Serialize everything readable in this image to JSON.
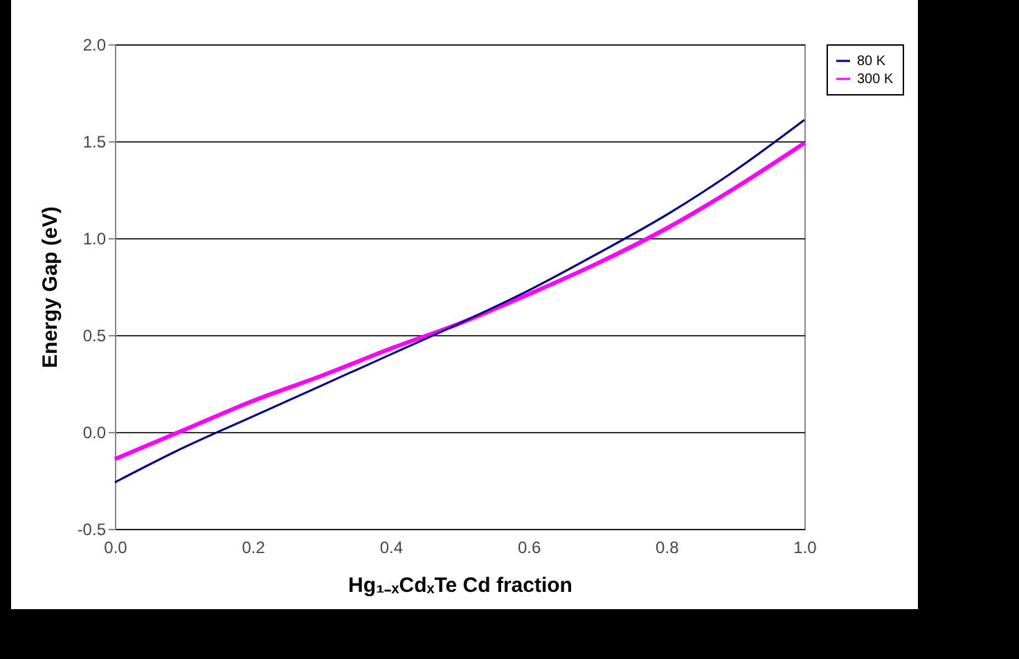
{
  "chart_data": {
    "type": "line",
    "xlabel": "Hg₁₋ₓCdₓTe Cd fraction",
    "ylabel": "Energy Gap (eV)",
    "x": [
      0,
      0.1,
      0.2,
      0.3,
      0.4,
      0.5,
      0.6,
      0.7,
      0.8,
      0.9,
      1.0
    ],
    "series": [
      {
        "name": "80 K",
        "color": "#000080",
        "values": [
          -0.26,
          -0.08,
          0.08,
          0.24,
          0.4,
          0.56,
          0.73,
          0.92,
          1.12,
          1.35,
          1.61
        ]
      },
      {
        "name": "300 K",
        "color": "#ff00ff",
        "values": [
          -0.14,
          0.01,
          0.16,
          0.29,
          0.43,
          0.56,
          0.71,
          0.87,
          1.05,
          1.26,
          1.49
        ]
      }
    ],
    "xlim": [
      0,
      1.0
    ],
    "ylim": [
      -0.5,
      2.0
    ],
    "xticks": [
      {
        "value": 0,
        "label": "0.0"
      },
      {
        "value": 0.2,
        "label": "0.2"
      },
      {
        "value": 0.4,
        "label": "0.4"
      },
      {
        "value": 0.6,
        "label": "0.6"
      },
      {
        "value": 0.8,
        "label": "0.8"
      },
      {
        "value": 1.0,
        "label": "1.0"
      }
    ],
    "yticks": [
      {
        "value": -0.5,
        "label": "-0.5"
      },
      {
        "value": 0,
        "label": "0.0"
      },
      {
        "value": 0.5,
        "label": "0.5"
      },
      {
        "value": 1.0,
        "label": "1.0"
      },
      {
        "value": 1.5,
        "label": "1.5"
      },
      {
        "value": 2.0,
        "label": "2.0"
      }
    ],
    "grid": "y",
    "legend": "right",
    "marker": "none",
    "line_style": "solid"
  }
}
